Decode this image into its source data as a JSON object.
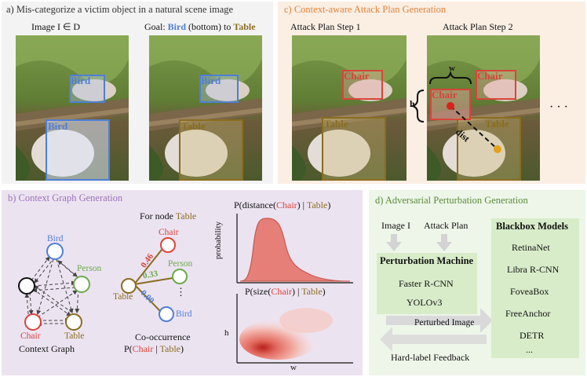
{
  "panel_a": {
    "title": "a) Mis-categorize a victim object in a natural scene image",
    "img1_caption": "Image I ∈ D",
    "img2_caption_prefix": "Goal: ",
    "img2_caption_bird": "Bird",
    "img2_caption_mid": " (bottom) to ",
    "img2_caption_table": "Table",
    "img1_box_top": "Bird",
    "img1_box_bottom": "Bird",
    "img2_box_top": "Bird",
    "img2_box_bottom": "Table"
  },
  "panel_c": {
    "title": "c) Context-aware Attack Plan Generation",
    "step1_caption": "Attack Plan Step 1",
    "step2_caption": "Attack Plan Step 2",
    "step1_box_top": "Chair",
    "step1_box_bottom": "Table",
    "step2_box_top": "Chair",
    "step2_box_mid": "Chair",
    "step2_box_bottom": "Table",
    "w_label": "w",
    "h_label": "h",
    "dist_label": "dist",
    "ellipsis": "· · ·"
  },
  "panel_b": {
    "title": "b) Context Graph Generation",
    "graph_nodes": [
      "Bird",
      "Person",
      "Chair",
      "Table"
    ],
    "graph_caption": "Context Graph",
    "for_node_prefix": "For node ",
    "for_node_name": "Table",
    "cooc_root": "Table",
    "cooc_targets": [
      "Chair",
      "Person",
      "Bird"
    ],
    "cooc_values": [
      "0.46",
      "0.33",
      "0.00"
    ],
    "cooc_dots": "⋮",
    "cooc_caption": "Co-occurrence",
    "cooc_formula_pre": "P(",
    "cooc_formula_chair": "Chair",
    "cooc_formula_mid": " | ",
    "cooc_formula_table": "Table",
    "cooc_formula_post": ")",
    "dist_title_pre": "P(distance(",
    "dist_title_chair": "Chair",
    "dist_title_mid": ") | ",
    "dist_title_table": "Table",
    "dist_title_post": ")",
    "dist_ylabel": "probability",
    "size_title_pre": "P(size(",
    "size_title_chair": "Chair",
    "size_title_mid": ") | ",
    "size_title_table": "Table",
    "size_title_post": ")",
    "size_xlabel": "w",
    "size_ylabel": "h"
  },
  "panel_d": {
    "title": "d) Adversarial Perturbation Generation",
    "input1": "Image I",
    "input2": "Attack Plan",
    "machine_title": "Perturbation Machine",
    "machine_items": [
      "Faster R-CNN",
      "YOLOv3"
    ],
    "perturbed_label": "Perturbed Image",
    "feedback_label": "Hard-label Feedback",
    "blackbox_title": "Blackbox Models",
    "blackbox_items": [
      "RetinaNet",
      "Libra R-CNN",
      "FoveaBox",
      "FreeAnchor",
      "DETR",
      "..."
    ]
  },
  "colors": {
    "bird": "#4f7fd6",
    "table": "#8a6d1e",
    "chair": "#d9443a",
    "person": "#6aaa4a",
    "panel_a_bg": "#f3f3f3",
    "panel_b_bg": "#ece3f1",
    "panel_c_bg": "#fbeee3",
    "panel_d_bg": "#eef6e9",
    "box_green": "#d8ecc9"
  }
}
